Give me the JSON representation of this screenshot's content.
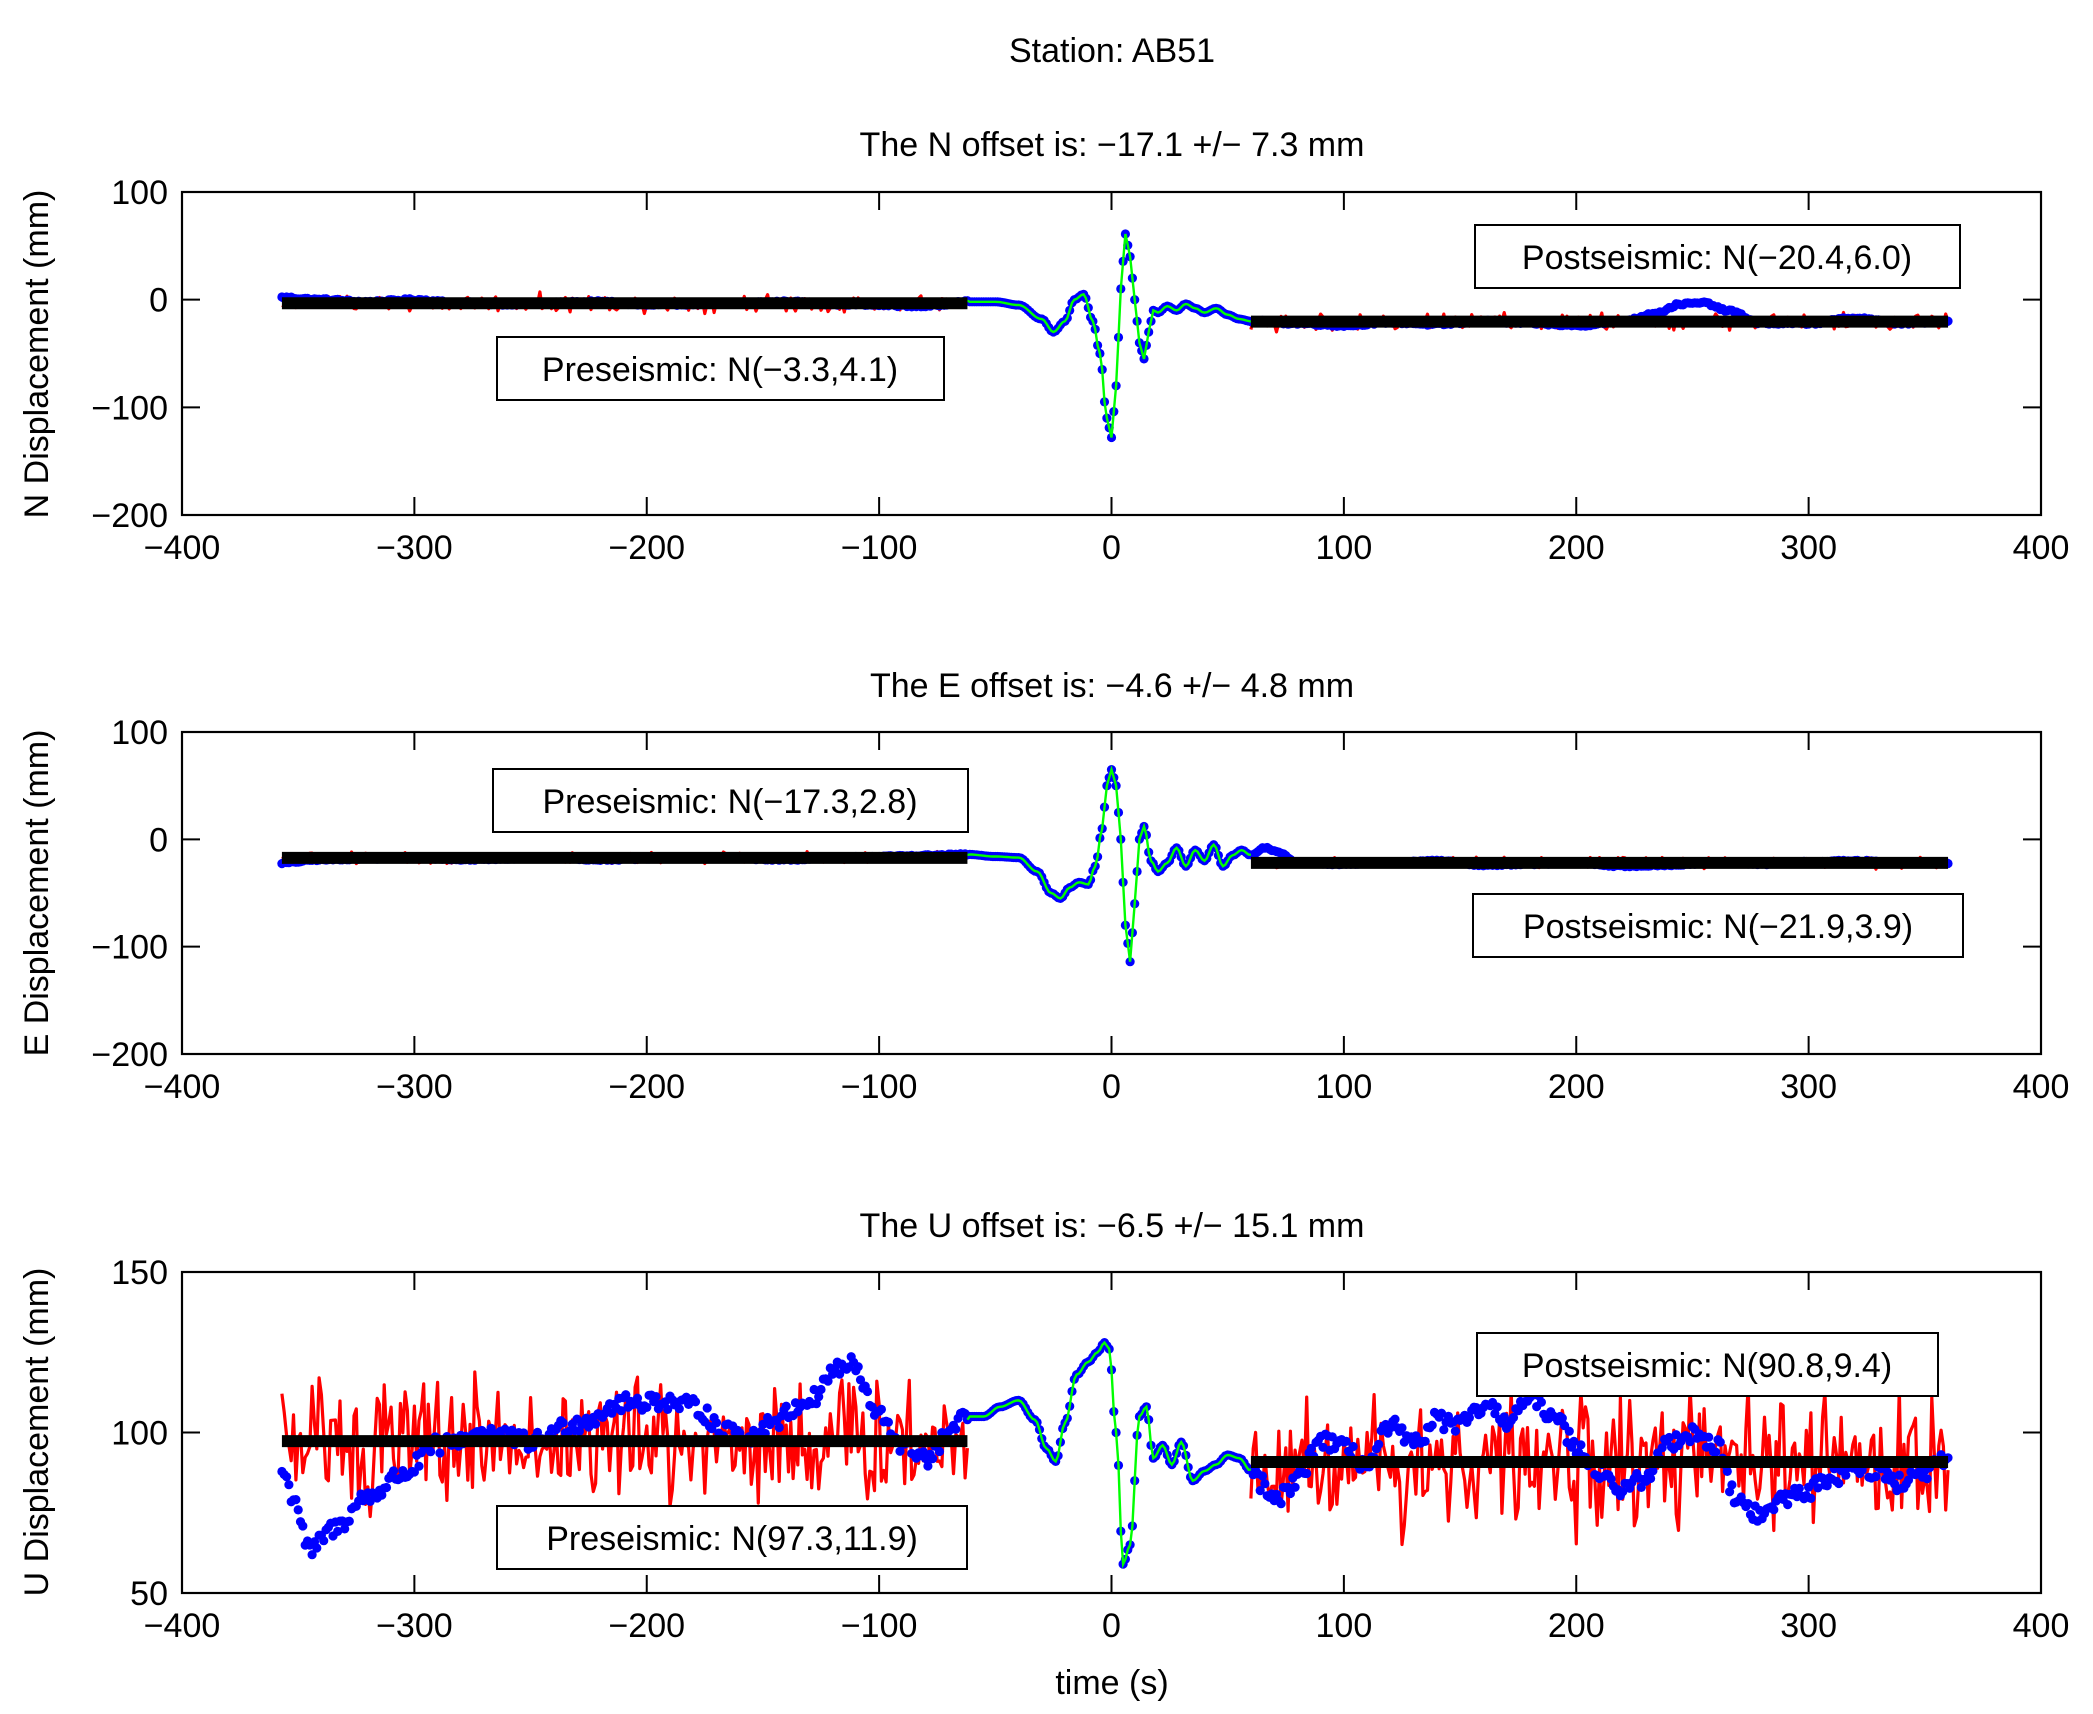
{
  "chart_data": {
    "type": "line",
    "title": "Station: AB51",
    "xlabel": "time (s)",
    "xlim": [
      -400,
      400
    ],
    "xticks": [
      -400,
      -300,
      -200,
      -100,
      0,
      100,
      200,
      300,
      400
    ],
    "colors": {
      "observed_dots": "#0000ff",
      "coseismic_line": "#00ff00",
      "residual_noise": "#ff0000",
      "fit_bars": "#000000"
    },
    "pre_window": [
      -357,
      -62
    ],
    "post_window": [
      60,
      360
    ],
    "panels": [
      {
        "component": "N",
        "subtitle": "The N offset is: −17.1 +/− 7.3 mm",
        "offset": -17.1,
        "offset_uncertainty": 7.3,
        "ylabel": "N Displacement (mm)",
        "ylim": [
          -200,
          100
        ],
        "yticks": [
          -200,
          -100,
          0,
          100
        ],
        "preseismic": {
          "label": "Preseismic: N(−3.3,4.1)",
          "mean": -3.3,
          "std": 4.1,
          "position": "lower"
        },
        "postseismic": {
          "label": "Postseismic: N(−20.4,6.0)",
          "mean": -20.4,
          "std": 6.0,
          "position": "upper"
        },
        "noise_amplitude": 6,
        "series": [
          {
            "name": "observed displacement",
            "x": [
              -357,
              -340,
              -320,
              -300,
              -280,
              -260,
              -240,
              -220,
              -200,
              -180,
              -160,
              -140,
              -120,
              -100,
              -80,
              -62,
              -50,
              -40,
              -30,
              -25,
              -20,
              -16,
              -12,
              -8,
              -5,
              -2,
              0,
              2,
              4,
              6,
              8,
              10,
              12,
              14,
              16,
              18,
              20,
              24,
              28,
              32,
              36,
              40,
              45,
              50,
              55,
              60,
              80,
              100,
              120,
              140,
              160,
              180,
              200,
              220,
              235,
              245,
              255,
              265,
              280,
              300,
              320,
              340,
              360
            ],
            "y": [
              2,
              0,
              -2,
              0,
              -3,
              -4,
              -3,
              -2,
              -5,
              -4,
              -3,
              -2,
              -4,
              -5,
              -6,
              -2,
              -2,
              -5,
              -18,
              -30,
              -20,
              0,
              5,
              -20,
              -50,
              -110,
              -128,
              -80,
              10,
              61,
              40,
              0,
              -40,
              -55,
              -30,
              -10,
              -12,
              -6,
              -10,
              -4,
              -8,
              -12,
              -8,
              -14,
              -18,
              -20,
              -22,
              -24,
              -21,
              -23,
              -20,
              -22,
              -24,
              -20,
              -12,
              -4,
              -3,
              -10,
              -22,
              -22,
              -17,
              -22,
              -20
            ]
          }
        ]
      },
      {
        "component": "E",
        "subtitle": "The E offset is: −4.6 +/− 4.8 mm",
        "offset": -4.6,
        "offset_uncertainty": 4.8,
        "ylabel": "E Displacement (mm)",
        "ylim": [
          -200,
          100
        ],
        "yticks": [
          -200,
          -100,
          0,
          100
        ],
        "preseismic": {
          "label": "Preseismic: N(−17.3,2.8)",
          "mean": -17.3,
          "std": 2.8,
          "position": "upper"
        },
        "postseismic": {
          "label": "Postseismic: N(−21.9,3.9)",
          "mean": -21.9,
          "std": 3.9,
          "position": "lower"
        },
        "noise_amplitude": 4,
        "series": [
          {
            "name": "observed displacement",
            "x": [
              -357,
              -340,
              -320,
              -300,
              -280,
              -260,
              -240,
              -220,
              -200,
              -180,
              -160,
              -140,
              -120,
              -100,
              -80,
              -62,
              -50,
              -40,
              -32,
              -26,
              -22,
              -18,
              -14,
              -10,
              -7,
              -4,
              -2,
              0,
              2,
              4,
              6,
              8,
              10,
              12,
              14,
              17,
              20,
              24,
              28,
              32,
              36,
              40,
              44,
              48,
              52,
              56,
              60,
              66,
              72,
              80,
              100,
              120,
              140,
              160,
              180,
              200,
              220,
              240,
              260,
              280,
              300,
              320,
              340,
              360
            ],
            "y": [
              -22,
              -19,
              -18,
              -17,
              -19,
              -18,
              -17,
              -19,
              -18,
              -17,
              -18,
              -19,
              -17,
              -16,
              -15,
              -14,
              -16,
              -17,
              -30,
              -50,
              -55,
              -45,
              -40,
              -42,
              -25,
              10,
              50,
              65,
              50,
              0,
              -80,
              -114,
              -60,
              0,
              12,
              -20,
              -30,
              -22,
              -8,
              -25,
              -10,
              -20,
              -5,
              -25,
              -15,
              -10,
              -15,
              -8,
              -12,
              -22,
              -23,
              -22,
              -20,
              -24,
              -23,
              -22,
              -25,
              -24,
              -22,
              -23,
              -21,
              -20,
              -22,
              -22
            ]
          }
        ]
      },
      {
        "component": "U",
        "subtitle": "The U offset is: −6.5 +/− 15.1 mm",
        "offset": -6.5,
        "offset_uncertainty": 15.1,
        "ylabel": "U Displacement (mm)",
        "ylim": [
          50,
          150
        ],
        "yticks": [
          50,
          100,
          150
        ],
        "preseismic": {
          "label": "Preseismic: N(97.3,11.9)",
          "mean": 97.3,
          "std": 11.9,
          "position": "lower"
        },
        "postseismic": {
          "label": "Postseismic: N(90.8,9.4)",
          "mean": 90.8,
          "std": 9.4,
          "position": "upper"
        },
        "noise_amplitude": 16,
        "series": [
          {
            "name": "observed displacement",
            "x": [
              -357,
              -352,
              -345,
              -335,
              -320,
              -305,
              -290,
              -270,
              -250,
              -230,
              -210,
              -195,
              -180,
              -165,
              -155,
              -145,
              -130,
              -118,
              -112,
              -100,
              -88,
              -78,
              -70,
              -62,
              -55,
              -48,
              -40,
              -33,
              -28,
              -24,
              -20,
              -15,
              -10,
              -6,
              -3,
              -1,
              2,
              5,
              8,
              12,
              15,
              18,
              22,
              26,
              30,
              35,
              40,
              45,
              50,
              55,
              60,
              65,
              70,
              80,
              90,
              100,
              110,
              120,
              130,
              140,
              150,
              160,
              170,
              180,
              190,
              200,
              210,
              220,
              230,
              240,
              250,
              260,
              270,
              280,
              290,
              300,
              310,
              320,
              330,
              340,
              350,
              360
            ],
            "y": [
              88,
              80,
              63,
              70,
              80,
              87,
              96,
              100,
              97,
              103,
              109,
              110,
              108,
              100,
              99,
              104,
              110,
              120,
              121,
              105,
              95,
              92,
              100,
              105,
              105,
              108,
              110,
              104,
              95,
              91,
              103,
              118,
              122,
              125,
              128,
              126,
              100,
              59,
              65,
              105,
              108,
              92,
              96,
              90,
              97,
              85,
              88,
              90,
              93,
              92,
              88,
              84,
              78,
              85,
              98,
              95,
              90,
              102,
              96,
              104,
              102,
              108,
              104,
              110,
              106,
              96,
              88,
              82,
              86,
              97,
              100,
              96,
              78,
              74,
              80,
              82,
              86,
              90,
              88,
              84,
              88,
              91
            ]
          }
        ]
      }
    ]
  }
}
